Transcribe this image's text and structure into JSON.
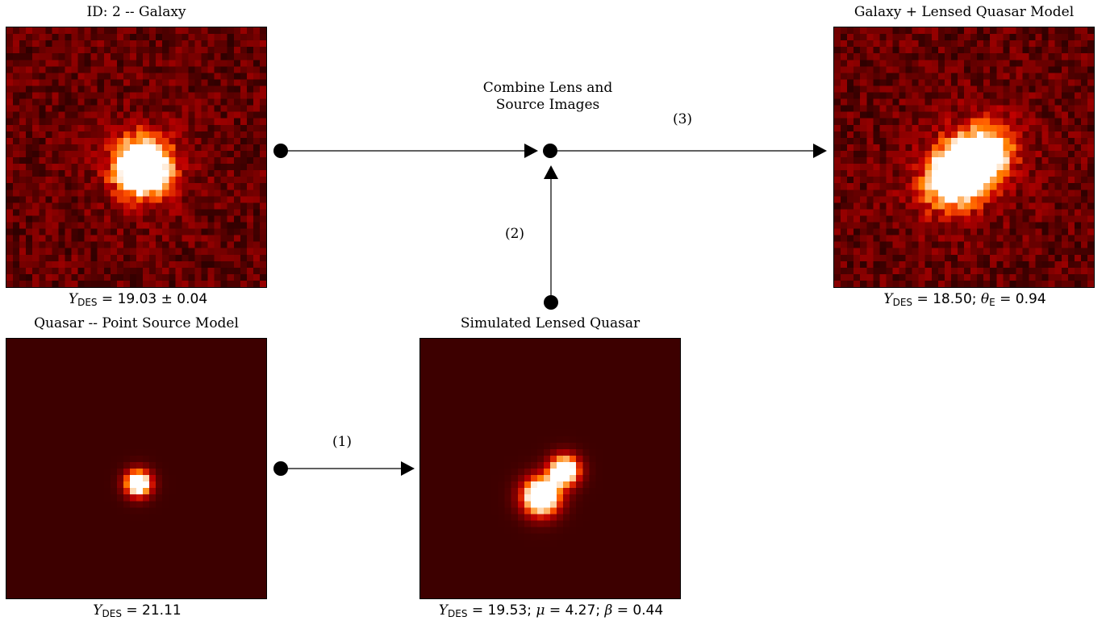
{
  "panels": {
    "galaxy": {
      "title": "ID: 2 -- Galaxy",
      "caption_var": "Y",
      "caption_sub": "DES",
      "caption_rest": " = 19.03 ± 0.04"
    },
    "model": {
      "title": "Galaxy + Lensed Quasar Model",
      "caption_var": "Y",
      "caption_sub": "DES",
      "caption_rest1": " = 18.50; ",
      "caption_theta": "θ",
      "caption_theta_sub": "E",
      "caption_rest2": " = 0.94"
    },
    "quasar": {
      "title": "Quasar -- Point Source Model",
      "caption_var": "Y",
      "caption_sub": "DES",
      "caption_rest": " = 21.11"
    },
    "lensed": {
      "title": "Simulated Lensed Quasar",
      "caption_var": "Y",
      "caption_sub": "DES",
      "caption_rest1": " = 19.53; ",
      "caption_mu": "μ",
      "caption_rest2": " = 4.27; ",
      "caption_beta": "β",
      "caption_rest3": " = 0.44"
    }
  },
  "combine_label_line1": "Combine Lens and",
  "combine_label_line2": "Source Images",
  "steps": {
    "one": "(1)",
    "two": "(2)",
    "three": "(3)"
  },
  "colors": {
    "background_dark": "#3a0000",
    "arrow": "#000000",
    "colormap": "gist_heat"
  }
}
